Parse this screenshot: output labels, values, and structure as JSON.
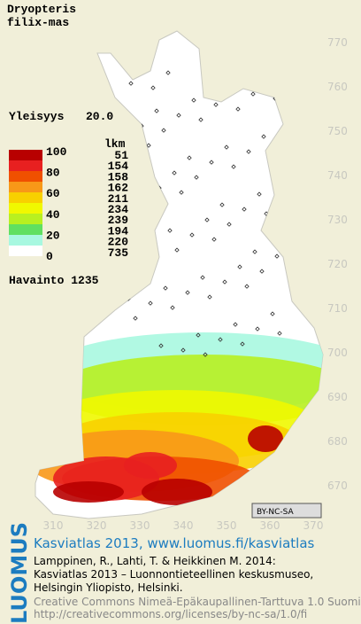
{
  "map": {
    "title_lines": [
      "Dryopteris",
      "filix-mas"
    ],
    "frequency_label": "Yleisyys",
    "frequency": "20.0",
    "legend": {
      "header": "lkm",
      "levels": [
        "100",
        "80",
        "60",
        "40",
        "20",
        "0"
      ],
      "counts": [
        "51",
        "154",
        "158",
        "162",
        "211",
        "234",
        "239",
        "194",
        "220",
        "735"
      ],
      "colors": [
        "#b80000",
        "#e82020",
        "#f05000",
        "#f89818",
        "#f8d000",
        "#f0f800",
        "#b8f020",
        "#60e060",
        "#a8f8e0",
        "#ffffff"
      ]
    },
    "observation_label": "Havainto 1235",
    "y_labels": [
      "770",
      "760",
      "750",
      "740",
      "730",
      "720",
      "710",
      "700",
      "690",
      "680",
      "670"
    ],
    "x_labels": [
      "310",
      "320",
      "330",
      "340",
      "350",
      "360",
      "370"
    ],
    "license_badge": "BY-NC-SA"
  },
  "footer": {
    "brand": "LUOMUS",
    "link": "Kasviatlas 2013, www.luomus.fi/kasviatlas",
    "citation": [
      "Lamppinen, R., Lahti, T. & Heikkinen M. 2014:",
      "Kasviatlas 2013 – Luonnontieteellinen keskusmuseo,",
      "Helsingin Yliopisto, Helsinki."
    ],
    "license": [
      "Creative Commons Nimeä-Epäkaupallinen-Tarttuva 1.0 Suomi",
      "http://creativecommons.org/licenses/by-nc-sa/1.0/fi"
    ]
  }
}
